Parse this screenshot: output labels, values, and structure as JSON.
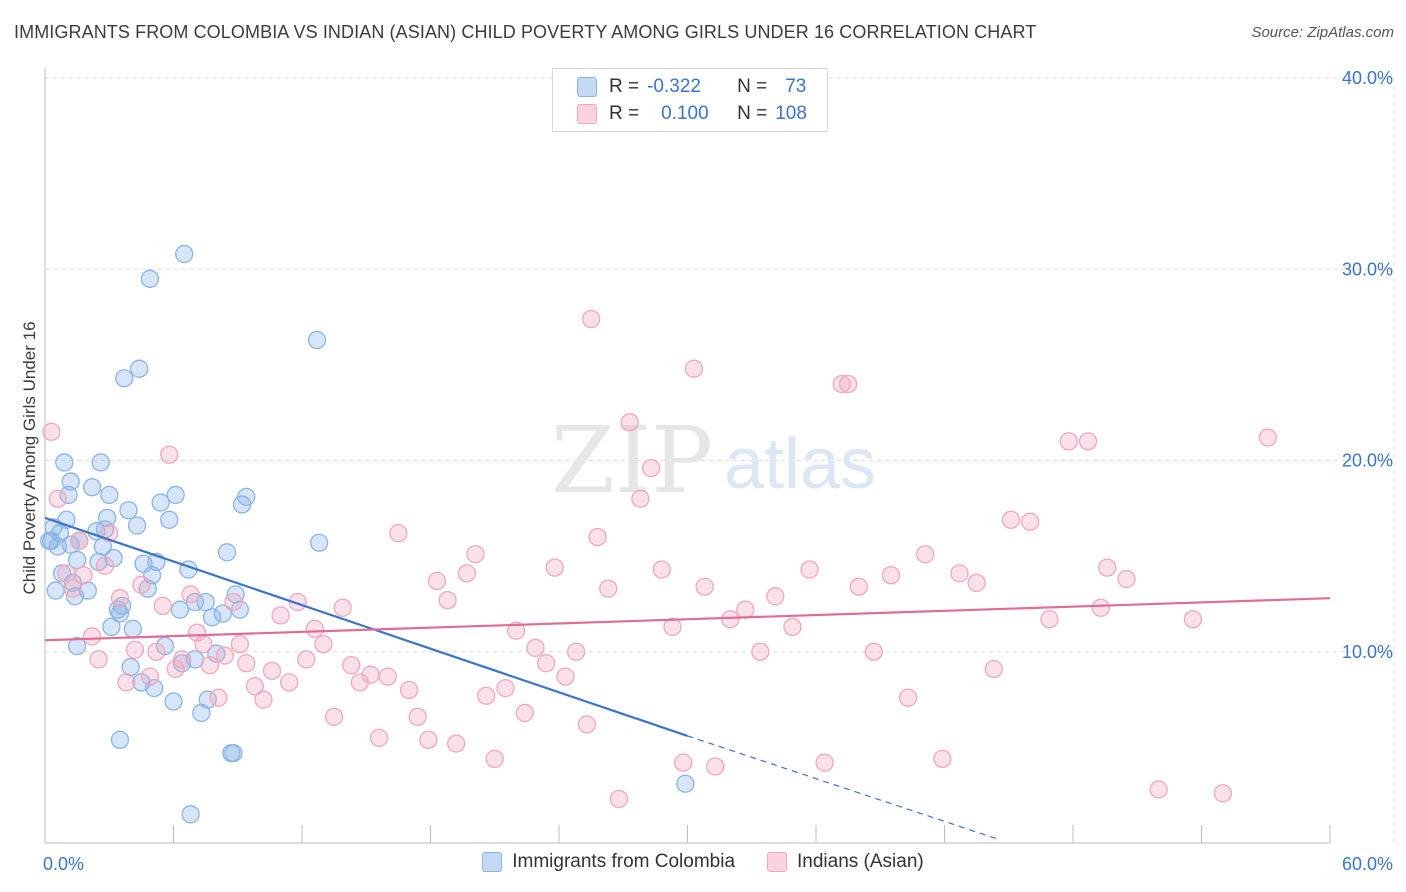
{
  "title": "IMMIGRANTS FROM COLOMBIA VS INDIAN (ASIAN) CHILD POVERTY AMONG GIRLS UNDER 16 CORRELATION CHART",
  "source": "Source: ZipAtlas.com",
  "watermark": {
    "zip": "ZIP",
    "atlas": "atlas"
  },
  "legend": {
    "r_label": "R =",
    "n_label": "N =",
    "series": [
      {
        "r": "-0.322",
        "n": "73"
      },
      {
        "r": "0.100",
        "n": "108"
      }
    ]
  },
  "chart_data": {
    "type": "scatter",
    "ylabel": "Child Poverty Among Girls Under 16",
    "xlim": [
      0,
      60
    ],
    "ylim": [
      0,
      40
    ],
    "x_ticks": [
      "0.0%",
      "60.0%"
    ],
    "y_ticks": [
      {
        "value": 10,
        "label": "10.0%"
      },
      {
        "value": 20,
        "label": "20.0%"
      },
      {
        "value": 30,
        "label": "30.0%"
      },
      {
        "value": 40,
        "label": "40.0%"
      }
    ],
    "grid": true,
    "series": [
      {
        "name": "Immigrants from Colombia",
        "color": "#8ab4e8",
        "line_color": "#3b74c9",
        "trend": {
          "x0": 0,
          "y0": 17.0,
          "x1": 30,
          "y1": 5.6,
          "dash_to_x": 44.5,
          "dash_to_y": 0.2
        },
        "points": [
          [
            0.3,
            15.8
          ],
          [
            0.4,
            16.5
          ],
          [
            0.6,
            15.5
          ],
          [
            0.7,
            16.2
          ],
          [
            0.8,
            14.1
          ],
          [
            0.9,
            19.9
          ],
          [
            1.0,
            16.9
          ],
          [
            1.1,
            18.2
          ],
          [
            1.2,
            15.6
          ],
          [
            1.3,
            13.6
          ],
          [
            1.4,
            12.9
          ],
          [
            1.5,
            14.8
          ],
          [
            1.6,
            15.8
          ],
          [
            1.2,
            18.9
          ],
          [
            0.5,
            13.2
          ],
          [
            2.2,
            18.6
          ],
          [
            2.4,
            16.3
          ],
          [
            2.6,
            19.9
          ],
          [
            2.7,
            15.5
          ],
          [
            2.8,
            16.4
          ],
          [
            2.9,
            17.0
          ],
          [
            3.0,
            18.2
          ],
          [
            3.2,
            14.9
          ],
          [
            3.4,
            12.2
          ],
          [
            3.5,
            12.0
          ],
          [
            3.6,
            12.4
          ],
          [
            3.7,
            24.3
          ],
          [
            3.9,
            17.4
          ],
          [
            4.1,
            11.2
          ],
          [
            4.3,
            16.6
          ],
          [
            4.4,
            24.8
          ],
          [
            4.6,
            14.6
          ],
          [
            4.8,
            13.3
          ],
          [
            4.9,
            29.5
          ],
          [
            5.0,
            14.0
          ],
          [
            5.2,
            14.7
          ],
          [
            5.4,
            17.8
          ],
          [
            5.6,
            10.3
          ],
          [
            5.8,
            16.9
          ],
          [
            6.1,
            18.2
          ],
          [
            6.3,
            12.2
          ],
          [
            6.5,
            30.8
          ],
          [
            6.7,
            14.3
          ],
          [
            7.0,
            12.6
          ],
          [
            7.3,
            6.8
          ],
          [
            7.5,
            12.6
          ],
          [
            7.8,
            11.8
          ],
          [
            8.0,
            9.9
          ],
          [
            8.3,
            12.0
          ],
          [
            8.5,
            15.2
          ],
          [
            8.7,
            4.7
          ],
          [
            8.9,
            13.0
          ],
          [
            9.2,
            17.7
          ],
          [
            9.4,
            18.1
          ],
          [
            9.1,
            12.2
          ],
          [
            12.7,
            26.3
          ],
          [
            12.8,
            15.7
          ],
          [
            1.5,
            10.3
          ],
          [
            2.0,
            13.2
          ],
          [
            4.5,
            8.4
          ],
          [
            5.1,
            8.1
          ],
          [
            6.0,
            7.4
          ],
          [
            7.0,
            9.6
          ],
          [
            7.6,
            7.5
          ],
          [
            8.8,
            4.7
          ],
          [
            3.5,
            5.4
          ],
          [
            6.8,
            1.5
          ],
          [
            29.9,
            3.1
          ],
          [
            0.2,
            15.8
          ],
          [
            2.5,
            14.7
          ],
          [
            3.1,
            11.3
          ],
          [
            4.0,
            9.2
          ],
          [
            6.4,
            9.4
          ]
        ]
      },
      {
        "name": "Indians (Asian)",
        "color": "#f2a7bd",
        "line_color": "#e26d94",
        "trend": {
          "x0": 0,
          "y0": 10.6,
          "x1": 60,
          "y1": 12.8
        },
        "points": [
          [
            0.3,
            21.5
          ],
          [
            0.6,
            18.0
          ],
          [
            1.0,
            14.1
          ],
          [
            1.3,
            13.3
          ],
          [
            1.6,
            15.8
          ],
          [
            1.8,
            14.0
          ],
          [
            2.2,
            10.8
          ],
          [
            2.5,
            9.6
          ],
          [
            2.8,
            14.5
          ],
          [
            3.0,
            16.2
          ],
          [
            3.5,
            12.8
          ],
          [
            3.8,
            8.4
          ],
          [
            4.2,
            10.1
          ],
          [
            4.5,
            13.5
          ],
          [
            4.9,
            8.7
          ],
          [
            5.2,
            10.0
          ],
          [
            5.5,
            12.4
          ],
          [
            5.8,
            20.3
          ],
          [
            6.1,
            9.1
          ],
          [
            6.4,
            9.6
          ],
          [
            6.8,
            13.0
          ],
          [
            7.1,
            11.0
          ],
          [
            7.4,
            10.4
          ],
          [
            7.7,
            9.3
          ],
          [
            8.1,
            7.6
          ],
          [
            8.4,
            9.8
          ],
          [
            8.8,
            12.6
          ],
          [
            9.1,
            10.4
          ],
          [
            9.4,
            9.4
          ],
          [
            9.8,
            8.2
          ],
          [
            10.2,
            7.5
          ],
          [
            10.6,
            9.0
          ],
          [
            11.0,
            11.9
          ],
          [
            11.4,
            8.4
          ],
          [
            11.8,
            12.6
          ],
          [
            12.2,
            9.6
          ],
          [
            12.6,
            11.2
          ],
          [
            13.0,
            10.4
          ],
          [
            13.5,
            6.6
          ],
          [
            13.9,
            12.3
          ],
          [
            14.3,
            9.3
          ],
          [
            14.7,
            8.4
          ],
          [
            15.2,
            8.8
          ],
          [
            15.6,
            5.5
          ],
          [
            16.0,
            8.7
          ],
          [
            16.5,
            16.2
          ],
          [
            17.0,
            8.0
          ],
          [
            17.4,
            6.6
          ],
          [
            17.9,
            5.4
          ],
          [
            18.3,
            13.7
          ],
          [
            18.8,
            12.7
          ],
          [
            19.2,
            5.2
          ],
          [
            19.7,
            14.1
          ],
          [
            20.1,
            15.1
          ],
          [
            20.6,
            7.7
          ],
          [
            21.0,
            4.4
          ],
          [
            21.5,
            8.1
          ],
          [
            22.0,
            11.1
          ],
          [
            22.4,
            6.8
          ],
          [
            22.9,
            10.2
          ],
          [
            23.4,
            9.4
          ],
          [
            23.8,
            14.4
          ],
          [
            24.3,
            8.7
          ],
          [
            24.8,
            10.0
          ],
          [
            25.3,
            6.2
          ],
          [
            25.8,
            16.0
          ],
          [
            26.3,
            13.3
          ],
          [
            26.8,
            2.3
          ],
          [
            27.3,
            22.0
          ],
          [
            27.8,
            18.0
          ],
          [
            28.3,
            19.6
          ],
          [
            28.8,
            14.3
          ],
          [
            29.3,
            11.3
          ],
          [
            29.8,
            4.2
          ],
          [
            30.3,
            24.8
          ],
          [
            30.8,
            13.4
          ],
          [
            31.3,
            4.0
          ],
          [
            32.0,
            11.7
          ],
          [
            32.7,
            12.2
          ],
          [
            33.4,
            10.0
          ],
          [
            34.1,
            12.9
          ],
          [
            34.9,
            11.3
          ],
          [
            35.7,
            14.3
          ],
          [
            36.4,
            4.2
          ],
          [
            37.2,
            24.0
          ],
          [
            38.0,
            13.4
          ],
          [
            38.7,
            10.0
          ],
          [
            39.5,
            14.0
          ],
          [
            40.3,
            7.6
          ],
          [
            41.1,
            15.1
          ],
          [
            41.9,
            4.4
          ],
          [
            42.7,
            14.1
          ],
          [
            43.5,
            13.6
          ],
          [
            44.3,
            9.1
          ],
          [
            45.1,
            16.9
          ],
          [
            46.0,
            16.8
          ],
          [
            46.9,
            11.7
          ],
          [
            47.8,
            21.0
          ],
          [
            48.7,
            21.0
          ],
          [
            49.6,
            14.4
          ],
          [
            50.5,
            13.8
          ],
          [
            52.0,
            2.8
          ],
          [
            53.6,
            11.7
          ],
          [
            55.0,
            2.6
          ],
          [
            57.1,
            21.2
          ],
          [
            25.5,
            27.4
          ],
          [
            37.5,
            24.0
          ],
          [
            49.3,
            12.3
          ]
        ]
      }
    ]
  }
}
